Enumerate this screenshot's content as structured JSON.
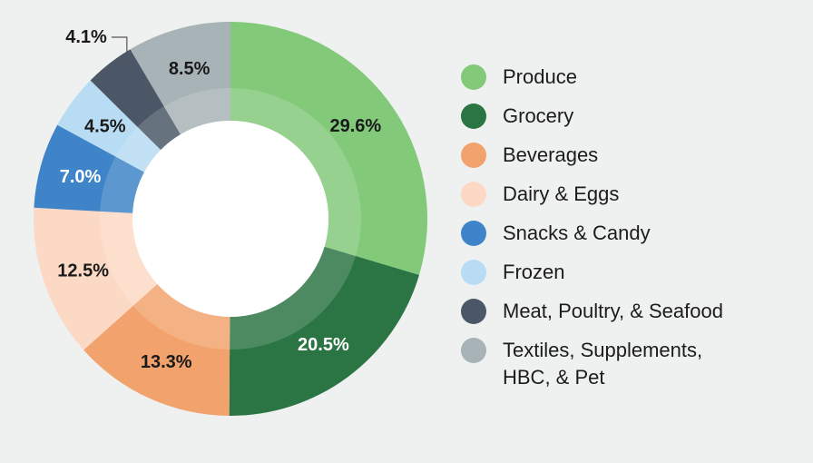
{
  "chart_data": {
    "type": "pie",
    "donut": true,
    "legend_position": "right",
    "categories": [
      "Produce",
      "Grocery",
      "Beverages",
      "Dairy & Eggs",
      "Snacks & Candy",
      "Frozen",
      "Meat, Poultry, & Seafood",
      "Textiles, Supplements,\nHBC, & Pet"
    ],
    "values": [
      29.6,
      20.5,
      13.3,
      12.5,
      7.0,
      4.5,
      4.1,
      8.5
    ],
    "labels": [
      "29.6%",
      "20.5%",
      "13.3%",
      "12.5%",
      "7.0%",
      "4.5%",
      "4.1%",
      "8.5%"
    ],
    "colors": [
      "#82c97a",
      "#2b7443",
      "#f2a26c",
      "#fcd9c4",
      "#3f84c8",
      "#b8dcf4",
      "#4b5767",
      "#a7b3b6"
    ],
    "label_colors": [
      "#1a1a1a",
      "#ffffff",
      "#1a1a1a",
      "#1a1a1a",
      "#ffffff",
      "#1a1a1a",
      "#1a1a1a",
      "#1a1a1a"
    ]
  }
}
